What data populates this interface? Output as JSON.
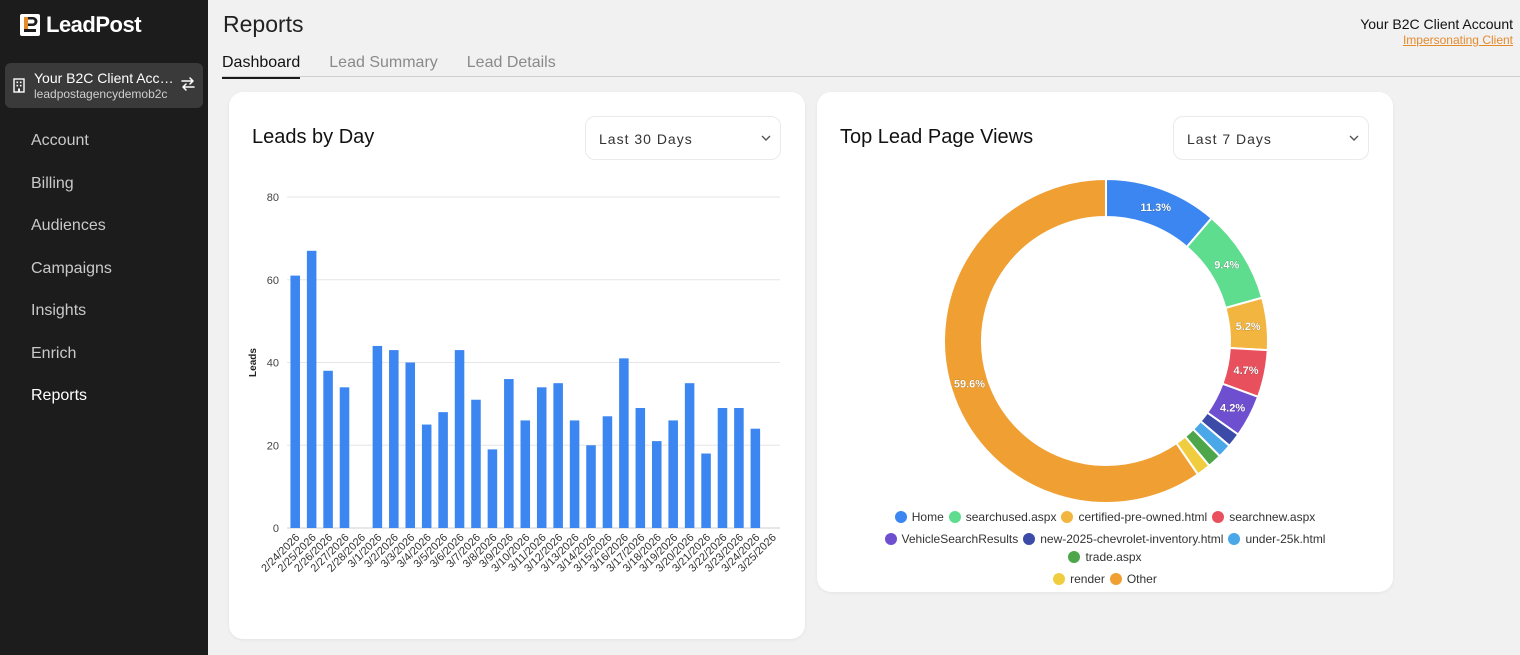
{
  "brand": {
    "name": "LeadPost"
  },
  "sidebar": {
    "account": {
      "name": "Your B2C Client Account",
      "sub": "leadpostagencydemob2c"
    },
    "items": [
      {
        "label": "Account"
      },
      {
        "label": "Billing"
      },
      {
        "label": "Audiences"
      },
      {
        "label": "Campaigns"
      },
      {
        "label": "Insights"
      },
      {
        "label": "Enrich"
      },
      {
        "label": "Reports",
        "active": true
      }
    ]
  },
  "header": {
    "title": "Reports",
    "user": "Your B2C Client Account",
    "impersonating": "Impersonating Client"
  },
  "tabs": [
    {
      "label": "Dashboard",
      "active": true
    },
    {
      "label": "Lead Summary"
    },
    {
      "label": "Lead Details"
    }
  ],
  "leads_card": {
    "title": "Leads by Day",
    "range": "Last 30 Days"
  },
  "pageviews_card": {
    "title": "Top Lead Page Views",
    "range": "Last 7 Days"
  },
  "colors": {
    "bar": "#3b86f0",
    "sidebar_bg": "#1c1c1c",
    "accent_link": "#e58a2b"
  },
  "chart_data": [
    {
      "type": "bar",
      "categories": [
        "2/24/2026",
        "2/25/2026",
        "2/26/2026",
        "2/27/2026",
        "2/28/2026",
        "3/1/2026",
        "3/2/2026",
        "3/3/2026",
        "3/4/2026",
        "3/5/2026",
        "3/6/2026",
        "3/7/2026",
        "3/8/2026",
        "3/9/2026",
        "3/10/2026",
        "3/11/2026",
        "3/12/2026",
        "3/13/2026",
        "3/14/2026",
        "3/15/2026",
        "3/16/2026",
        "3/17/2026",
        "3/18/2026",
        "3/19/2026",
        "3/20/2026",
        "3/21/2026",
        "3/22/2026",
        "3/23/2026",
        "3/24/2026",
        "3/25/2026"
      ],
      "values": [
        61,
        67,
        38,
        34,
        0,
        44,
        43,
        40,
        25,
        28,
        43,
        31,
        19,
        36,
        26,
        34,
        35,
        26,
        20,
        27,
        41,
        29,
        21,
        26,
        35,
        18,
        29,
        29,
        24,
        0
      ],
      "ylabel": "Leads",
      "ylim": [
        0,
        80
      ],
      "yticks": [
        0,
        20,
        40,
        60,
        80
      ],
      "grid": true
    },
    {
      "type": "pie",
      "donut": true,
      "slices": [
        {
          "label": "Home",
          "value": 11.3,
          "color": "#3b86f0",
          "show_label": "11.3%"
        },
        {
          "label": "searchused.aspx",
          "value": 9.4,
          "color": "#5fdd8f",
          "show_label": "9.4%"
        },
        {
          "label": "certified-pre-owned.html",
          "value": 5.2,
          "color": "#f2b540",
          "show_label": "5.2%"
        },
        {
          "label": "searchnew.aspx",
          "value": 4.7,
          "color": "#e9505e",
          "show_label": "4.7%"
        },
        {
          "label": "VehicleSearchResults",
          "value": 4.2,
          "color": "#6e4fcf",
          "show_label": "4.2%"
        },
        {
          "label": "new-2025-chevrolet-inventory.html",
          "value": 1.4,
          "color": "#3d4ba8",
          "show_label": ""
        },
        {
          "label": "under-25k.html",
          "value": 1.4,
          "color": "#4aa7e8",
          "show_label": ""
        },
        {
          "label": "trade.aspx",
          "value": 1.4,
          "color": "#4ea64b",
          "show_label": ""
        },
        {
          "label": "render",
          "value": 1.4,
          "color": "#f0cd3e",
          "show_label": ""
        },
        {
          "label": "Other",
          "value": 59.6,
          "color": "#f0a033",
          "show_label": "59.6%"
        }
      ],
      "legend_position": "bottom"
    }
  ]
}
